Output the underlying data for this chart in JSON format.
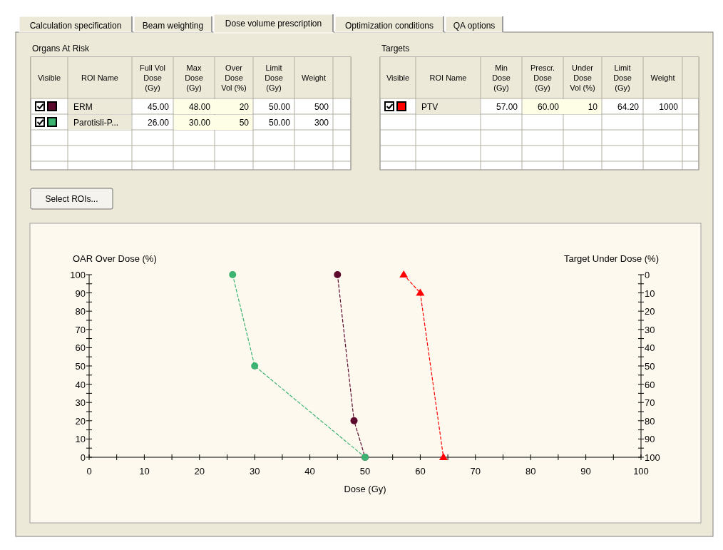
{
  "chart_data": [
    {
      "type": "other",
      "annotations": [
        "Calculation specification",
        "Beam weighting",
        "Dose volume prescription",
        "Optimization conditions",
        "QA options",
        "Organs At Risk",
        "Visible",
        "ROI Name",
        "Full Vol Dose (Gy)",
        "Max Dose (Gy)",
        "Over Dose Vol (%)",
        "Limit Dose (Gy)",
        "Weight",
        "ERM",
        "45.00",
        "48.00",
        "20",
        "50.00",
        "500",
        "Parotisli-P...",
        "26.00",
        "30.00",
        "50",
        "50.00",
        "300",
        "Targets",
        "Visible",
        "ROI Name",
        "Min Dose (Gy)",
        "Prescr. Dose (Gy)",
        "Under Dose Vol (%)",
        "Limit Dose (Gy)",
        "Weight",
        "PTV",
        "57.00",
        "60.00",
        "10",
        "64.20",
        "1000",
        "Select ROIs..."
      ]
    },
    {
      "type": "line",
      "xlabel": "Dose (Gy)",
      "ylabel": "OAR Over Dose (%)",
      "y2label": "Target Under Dose (%)",
      "xlim": [
        0,
        100
      ],
      "ylim": [
        0,
        100
      ],
      "y2lim": [
        100,
        0
      ],
      "xticks": [
        0,
        {
          "value": 5,
          "label": null
        },
        10,
        {
          "value": 15,
          "label": null
        },
        20,
        {
          "value": 25,
          "label": null
        },
        30,
        {
          "value": 35,
          "label": null
        },
        40,
        {
          "value": 45,
          "label": null
        },
        50,
        {
          "value": 55,
          "label": null
        },
        60,
        {
          "value": 65,
          "label": null
        },
        70,
        {
          "value": 75,
          "label": null
        },
        80,
        {
          "value": 85,
          "label": null
        },
        90,
        {
          "value": 95,
          "label": null
        },
        100
      ],
      "yticks": [
        0,
        {
          "value": 5,
          "label": null
        },
        10,
        {
          "value": 15,
          "label": null
        },
        20,
        {
          "value": 25,
          "label": null
        },
        30,
        {
          "value": 35,
          "label": null
        },
        40,
        {
          "value": 45,
          "label": null
        },
        50,
        {
          "value": 55,
          "label": null
        },
        60,
        {
          "value": 65,
          "label": null
        },
        70,
        {
          "value": 75,
          "label": null
        },
        80,
        {
          "value": 85,
          "label": null
        },
        90,
        {
          "value": 95,
          "label": null
        },
        100
      ],
      "y2ticks": [
        0,
        {
          "value": 5,
          "label": null
        },
        10,
        {
          "value": 15,
          "label": null
        },
        20,
        {
          "value": 25,
          "label": null
        },
        30,
        {
          "value": 35,
          "label": null
        },
        40,
        {
          "value": 45,
          "label": null
        },
        50,
        {
          "value": 55,
          "label": null
        },
        60,
        {
          "value": 65,
          "label": null
        },
        70,
        {
          "value": 75,
          "label": null
        },
        80,
        {
          "value": 85,
          "label": null
        },
        90,
        {
          "value": 95,
          "label": null
        },
        100
      ],
      "line_style": "dashed",
      "series": [
        {
          "color": "#5c0a2e",
          "marker": "circle",
          "x": [
            45,
            48,
            50
          ],
          "values": [
            100,
            20,
            0
          ]
        },
        {
          "color": "#3cb371",
          "marker": "circle",
          "x": [
            26,
            30,
            50
          ],
          "values": [
            100,
            50,
            0
          ]
        },
        {
          "color": "#ff0000",
          "marker": "triangle",
          "axis": "y2",
          "x": [
            57,
            60,
            64.2
          ],
          "values": [
            0,
            10,
            100
          ]
        }
      ]
    }
  ]
}
